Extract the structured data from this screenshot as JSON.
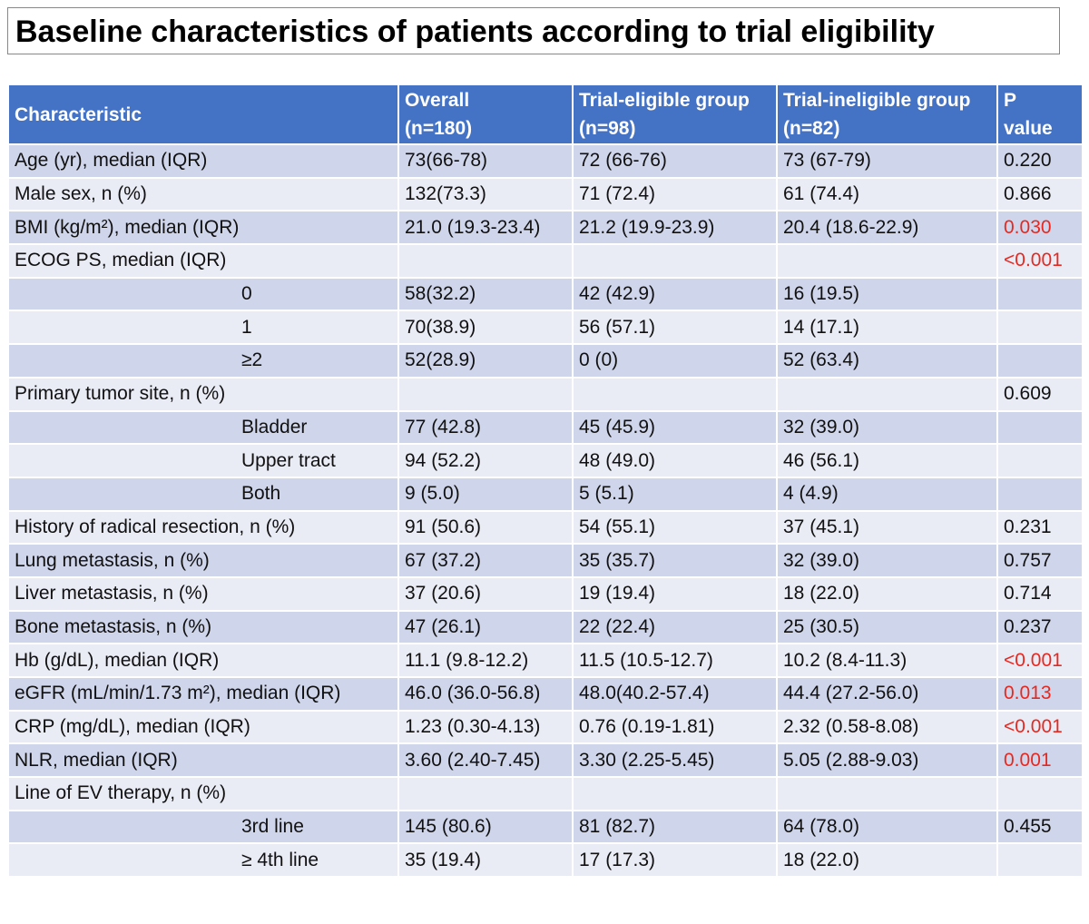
{
  "header": {
    "title": "Baseline characteristics of patients according to trial eligibility"
  },
  "table": {
    "header_color": "#4472c4",
    "row_colors": [
      "#cfd5ea",
      "#e9ebf5"
    ],
    "significant_color": "#e8281f",
    "columns": [
      [
        "Characteristic"
      ],
      [
        "Overall",
        "(n=180)"
      ],
      [
        "Trial-eligible group",
        "(n=98)"
      ],
      [
        "Trial-ineligible group",
        "(n=82)"
      ],
      [
        "P",
        "value"
      ]
    ],
    "rows": [
      {
        "cells": [
          "Age (yr), median (IQR)",
          "73(66-78)",
          "72 (66-76)",
          "73 (67-79)",
          "0.220"
        ]
      },
      {
        "cells": [
          "Male sex, n (%)",
          "132(73.3)",
          "71 (72.4)",
          "61 (74.4)",
          "0.866"
        ]
      },
      {
        "cells": [
          "BMI (kg/m²), median (IQR)",
          "21.0 (19.3-23.4)",
          "21.2 (19.9-23.9)",
          "20.4 (18.6-22.9)",
          "0.030"
        ],
        "significant": true
      },
      {
        "cells": [
          "ECOG PS, median (IQR)",
          null,
          null,
          null,
          "<0.001"
        ],
        "significant": true
      },
      {
        "cells": [
          "0",
          "58(32.2)",
          "42 (42.9)",
          "16 (19.5)",
          null
        ],
        "sub": true
      },
      {
        "cells": [
          "1",
          "70(38.9)",
          "56 (57.1)",
          "14 (17.1)",
          null
        ],
        "sub": true
      },
      {
        "cells": [
          "≥2",
          "52(28.9)",
          "0 (0)",
          "52 (63.4)",
          null
        ],
        "sub": true
      },
      {
        "cells": [
          "Primary tumor site, n (%)",
          null,
          null,
          null,
          "0.609"
        ]
      },
      {
        "cells": [
          "Bladder",
          "77 (42.8)",
          "45 (45.9)",
          "32 (39.0)",
          null
        ],
        "sub": true
      },
      {
        "cells": [
          "Upper tract",
          "94 (52.2)",
          "48 (49.0)",
          "46 (56.1)",
          null
        ],
        "sub": true
      },
      {
        "cells": [
          "Both",
          "9 (5.0)",
          "5 (5.1)",
          "4 (4.9)",
          null
        ],
        "sub": true
      },
      {
        "cells": [
          "History of radical resection, n (%)",
          "91 (50.6)",
          "54 (55.1)",
          "37 (45.1)",
          "0.231"
        ]
      },
      {
        "cells": [
          "Lung metastasis, n (%)",
          "67 (37.2)",
          "35 (35.7)",
          "32 (39.0)",
          "0.757"
        ]
      },
      {
        "cells": [
          "Liver metastasis, n (%)",
          "37 (20.6)",
          "19 (19.4)",
          "18 (22.0)",
          "0.714"
        ]
      },
      {
        "cells": [
          "Bone metastasis, n (%)",
          "47 (26.1)",
          "22 (22.4)",
          "25 (30.5)",
          "0.237"
        ]
      },
      {
        "cells": [
          "Hb (g/dL), median (IQR)",
          "11.1 (9.8-12.2)",
          "11.5 (10.5-12.7)",
          "10.2 (8.4-11.3)",
          "<0.001"
        ],
        "significant": true
      },
      {
        "cells": [
          "eGFR (mL/min/1.73 m²), median (IQR)",
          "46.0 (36.0-56.8)",
          "48.0(40.2-57.4)",
          "44.4 (27.2-56.0)",
          "0.013"
        ],
        "significant": true
      },
      {
        "cells": [
          "CRP (mg/dL), median (IQR)",
          "1.23 (0.30-4.13)",
          "0.76 (0.19-1.81)",
          "2.32 (0.58-8.08)",
          "<0.001"
        ],
        "significant": true
      },
      {
        "cells": [
          "NLR, median (IQR)",
          "3.60 (2.40-7.45)",
          "3.30 (2.25-5.45)",
          "5.05 (2.88-9.03)",
          "0.001"
        ],
        "significant": true
      },
      {
        "cells": [
          "Line of EV therapy, n (%)",
          null,
          null,
          null,
          null
        ]
      },
      {
        "cells": [
          "3rd line",
          "145 (80.6)",
          "81 (82.7)",
          "64 (78.0)",
          "0.455"
        ],
        "sub": true
      },
      {
        "cells": [
          "≥ 4th line",
          "35 (19.4)",
          "17 (17.3)",
          "18 (22.0)",
          null
        ],
        "sub": true
      }
    ]
  }
}
